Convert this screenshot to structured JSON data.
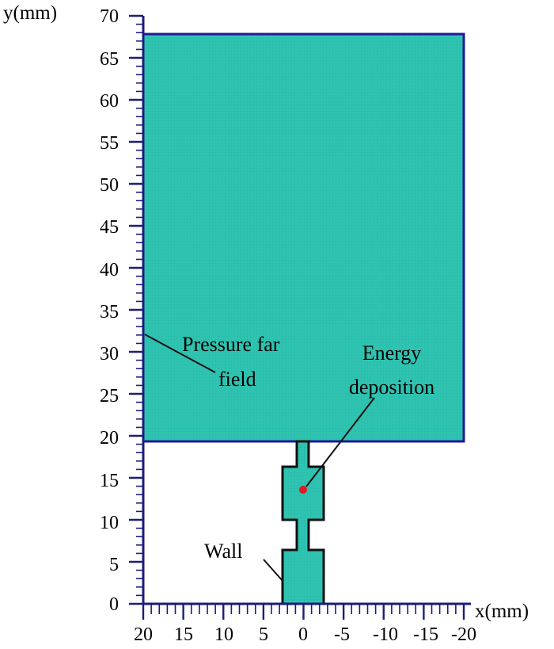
{
  "figure": {
    "y_axis_title": "y(mm)",
    "x_axis_title": "x(mm)",
    "x_ticks": [
      "20",
      "15",
      "10",
      "5",
      "0",
      "-5",
      "-10",
      "-15",
      "-20"
    ],
    "y_ticks": [
      "70",
      "65",
      "60",
      "55",
      "50",
      "45",
      "40",
      "35",
      "30",
      "25",
      "20",
      "15",
      "10",
      "5",
      "0"
    ],
    "annotations": {
      "pressure_far_field_line1": "Pressure far",
      "pressure_far_field_line2": "field",
      "energy_deposition_line1": "Energy",
      "energy_deposition_line2": "deposition",
      "wall": "Wall"
    },
    "colors": {
      "mesh_fill": "#2fc4b2",
      "mesh_grid": "#27a898",
      "boundary": "#1a1a9a",
      "axis": "#1c1c7a",
      "energy_point": "#e0191f"
    }
  }
}
